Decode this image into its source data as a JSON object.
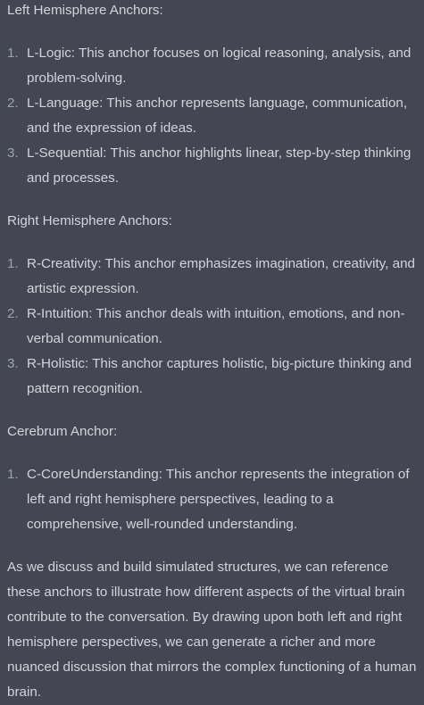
{
  "sections": [
    {
      "heading": "Left Hemisphere Anchors:",
      "items": [
        {
          "num": "1.",
          "text": "L-Logic: This anchor focuses on logical reasoning, analysis, and problem-solving."
        },
        {
          "num": "2.",
          "text": "L-Language: This anchor represents language, communication, and the expression of ideas."
        },
        {
          "num": "3.",
          "text": "L-Sequential: This anchor highlights linear, step-by-step thinking and processes."
        }
      ]
    },
    {
      "heading": "Right Hemisphere Anchors:",
      "items": [
        {
          "num": "1.",
          "text": "R-Creativity: This anchor emphasizes imagination, creativity, and artistic expression."
        },
        {
          "num": "2.",
          "text": "R-Intuition: This anchor deals with intuition, emotions, and non-verbal communication."
        },
        {
          "num": "3.",
          "text": "R-Holistic: This anchor captures holistic, big-picture thinking and pattern recognition."
        }
      ]
    },
    {
      "heading": "Cerebrum Anchor:",
      "items": [
        {
          "num": "1.",
          "text": "C-CoreUnderstanding: This anchor represents the integration of left and right hemisphere perspectives, leading to a comprehensive, well-rounded understanding."
        }
      ]
    }
  ],
  "closing": "As we discuss and build simulated structures, we can reference these anchors to illustrate how different aspects of the virtual brain contribute to the conversation. By drawing upon both left and right hemisphere perspectives, we can generate a richer and more nuanced discussion that mirrors the complex functioning of a human brain."
}
